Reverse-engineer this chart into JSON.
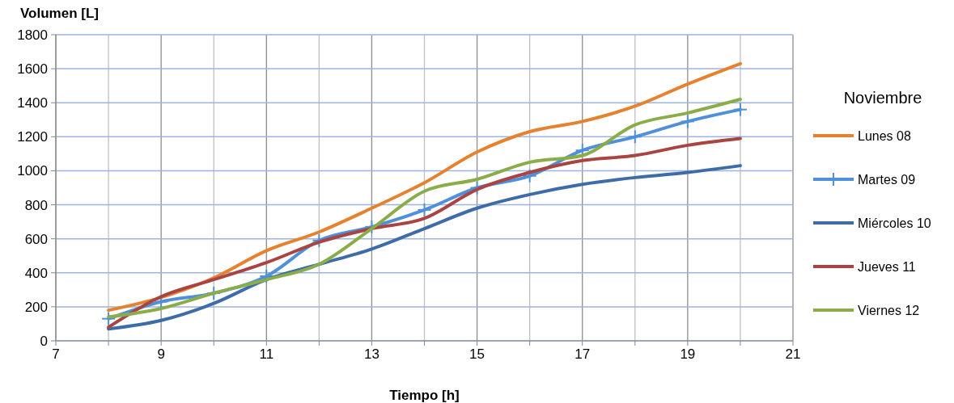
{
  "chart_data": {
    "type": "line",
    "xlabel": "Tiempo [h]",
    "ylabel": "Volumen [L]",
    "legend_title": "Noviembre",
    "legend": "right",
    "grid": true,
    "x": [
      8,
      9,
      10,
      11,
      12,
      13,
      14,
      15,
      16,
      17,
      18,
      19,
      20
    ],
    "xlim": [
      7,
      21
    ],
    "xticks": [
      7,
      {
        "value": 8,
        "label": null
      },
      9,
      {
        "value": 10,
        "label": null
      },
      11,
      {
        "value": 12,
        "label": null
      },
      13,
      {
        "value": 14,
        "label": null
      },
      15,
      {
        "value": 16,
        "label": null
      },
      17,
      {
        "value": 18,
        "label": null
      },
      19,
      {
        "value": 20,
        "label": null
      },
      21
    ],
    "ylim": [
      0,
      1800
    ],
    "yticks": [
      0,
      200,
      400,
      600,
      800,
      1000,
      1200,
      1400,
      1600,
      1800
    ],
    "series": [
      {
        "name": "Lunes 08",
        "color": "#e6812f",
        "marker": "none",
        "values": [
          180,
          255,
          370,
          530,
          640,
          780,
          930,
          1110,
          1230,
          1290,
          1380,
          1510,
          1630
        ]
      },
      {
        "name": "Martes 09",
        "color": "#4f90db",
        "marker": "cross",
        "values": [
          130,
          230,
          280,
          380,
          590,
          670,
          770,
          900,
          970,
          1120,
          1200,
          1290,
          1360
        ]
      },
      {
        "name": "Miércoles 10",
        "color": "#3d6ca8",
        "marker": "none",
        "values": [
          70,
          120,
          220,
          360,
          450,
          540,
          660,
          780,
          860,
          920,
          960,
          990,
          1030
        ]
      },
      {
        "name": "Jueves 11",
        "color": "#aa4442",
        "marker": "none",
        "values": [
          80,
          260,
          360,
          460,
          580,
          660,
          720,
          890,
          990,
          1060,
          1090,
          1150,
          1190
        ]
      },
      {
        "name": "Viernes 12",
        "color": "#8aad4a",
        "marker": "none",
        "values": [
          140,
          190,
          280,
          360,
          450,
          660,
          880,
          950,
          1050,
          1090,
          1270,
          1340,
          1420
        ]
      }
    ]
  }
}
